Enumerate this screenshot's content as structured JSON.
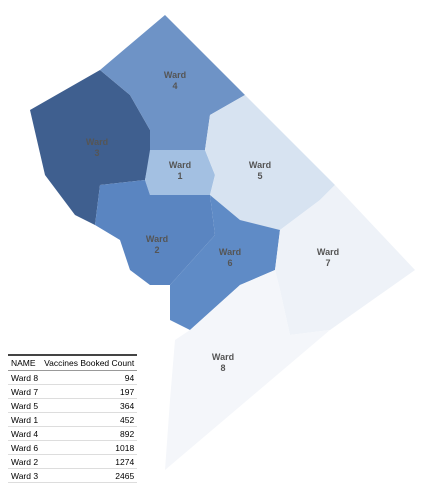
{
  "map": {
    "wards": [
      {
        "label": "Ward",
        "number": "3",
        "color": "#3f5f8f"
      },
      {
        "label": "Ward",
        "number": "4",
        "color": "#6e93c6"
      },
      {
        "label": "Ward",
        "number": "1",
        "color": "#a3c0e2"
      },
      {
        "label": "Ward",
        "number": "5",
        "color": "#d7e3f1"
      },
      {
        "label": "Ward",
        "number": "2",
        "color": "#5a85c1"
      },
      {
        "label": "Ward",
        "number": "6",
        "color": "#5f8bc6"
      },
      {
        "label": "Ward",
        "number": "7",
        "color": "#eef2f8"
      },
      {
        "label": "Ward",
        "number": "8",
        "color": "#f4f6fa"
      }
    ]
  },
  "table": {
    "columns": [
      "NAME",
      "Vaccines Booked Count"
    ],
    "rows": [
      [
        "Ward 8",
        94
      ],
      [
        "Ward 7",
        197
      ],
      [
        "Ward 5",
        364
      ],
      [
        "Ward 1",
        452
      ],
      [
        "Ward 4",
        892
      ],
      [
        "Ward 6",
        1018
      ],
      [
        "Ward 2",
        1274
      ],
      [
        "Ward 3",
        2465
      ]
    ]
  }
}
